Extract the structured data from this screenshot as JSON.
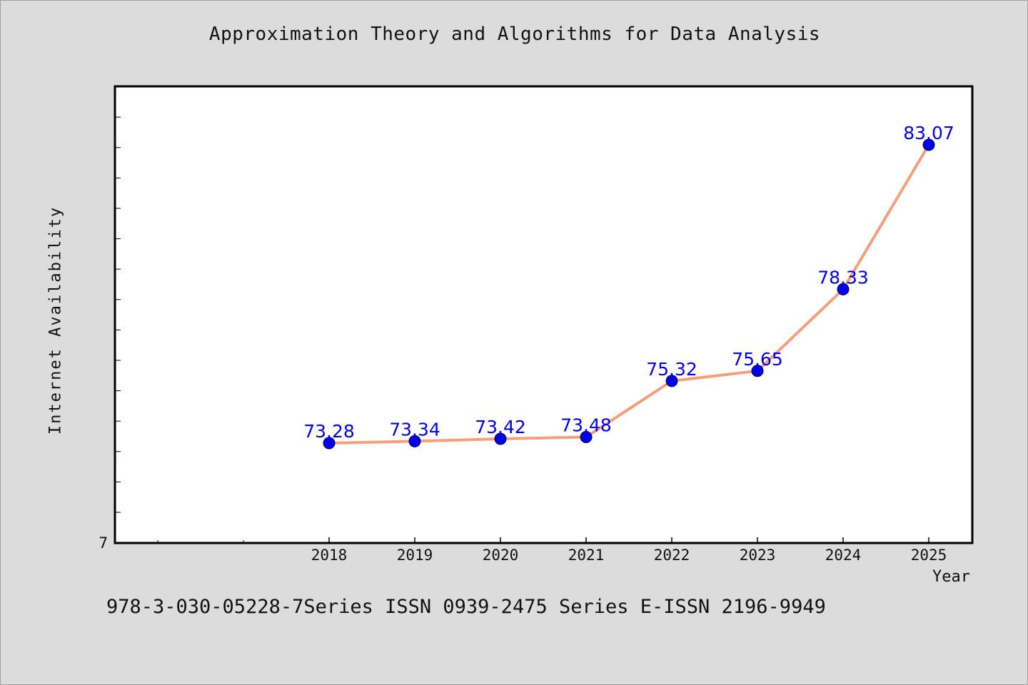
{
  "title": "Approximation Theory and Algorithms for Data Analysis",
  "footer": "978-3-030-05228-7Series ISSN 0939-2475 Series E-ISSN 2196-9949",
  "colors": {
    "background": "#dcdcdc",
    "plot_background": "#ffffff",
    "line": "#f4a07c",
    "marker": "#0000ee",
    "data_label": "#0000ee"
  },
  "chart_data": {
    "type": "line",
    "title": "Approximation Theory and Algorithms for Data Analysis",
    "xlabel": "Year",
    "ylabel": "Internet Availability",
    "categories": [
      "2018",
      "2019",
      "2020",
      "2021",
      "2022",
      "2023",
      "2024",
      "2025"
    ],
    "series": [
      {
        "values": [
          73.28,
          73.34,
          73.42,
          73.48,
          75.32,
          75.65,
          78.33,
          83.07
        ],
        "labels": [
          "73.28",
          "73.34",
          "73.42",
          "73.48",
          "75.32",
          "75.65",
          "78.33",
          "83.07"
        ]
      }
    ],
    "y_tick_label": "7",
    "grid": false,
    "legend": "none"
  }
}
